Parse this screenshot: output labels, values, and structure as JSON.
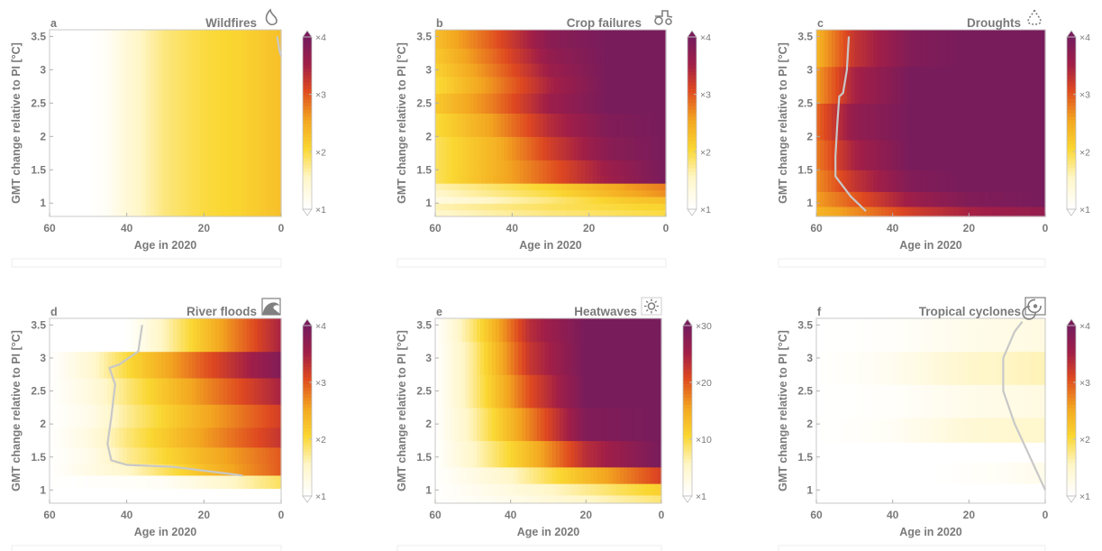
{
  "chart_data": [
    {
      "type": "heatmap",
      "letter": "a",
      "title": "Wildfires",
      "icon": "flame-icon",
      "xlabel": "Age in 2020",
      "ylabel": "GMT change relative to PI [°C]",
      "xlim": [
        60,
        0
      ],
      "ylim": [
        0.8,
        3.6
      ],
      "xticks": [
        "60",
        "40",
        "20",
        "0"
      ],
      "yticks": [
        "1",
        "1.5",
        "2",
        "2.5",
        "3",
        "3.5"
      ],
      "colorbar": {
        "ticks": [
          "×1",
          "×2",
          "×3",
          "×4"
        ]
      },
      "scale_max": 4,
      "ages": [
        60,
        50,
        45,
        40,
        35,
        30,
        20,
        10,
        0
      ],
      "values": [
        1.0,
        1.0,
        1.1,
        1.4,
        1.6,
        1.8,
        2.0,
        2.1,
        2.3
      ],
      "contour": [
        [
          1,
          3.5
        ],
        [
          0.5,
          3.3
        ],
        [
          0,
          3.2
        ]
      ]
    },
    {
      "type": "heatmap",
      "letter": "b",
      "title": "Crop failures",
      "icon": "tractor-icon",
      "xlabel": "Age in 2020",
      "ylabel": "GMT change relative to PI [°C]",
      "xlim": [
        60,
        0
      ],
      "ylim": [
        0.8,
        3.6
      ],
      "xticks": [
        "60",
        "40",
        "20",
        "0"
      ],
      "yticks": [
        "1",
        "1.5",
        "2",
        "2.5",
        "3",
        "3.5"
      ],
      "colorbar": {
        "ticks": [
          "×1",
          "×2",
          "×3",
          "×4"
        ]
      },
      "scale_max": 4,
      "rows": [
        {
          "gmt": 0.85,
          "ages": [
            60,
            30,
            0
          ],
          "values": [
            1.5,
            1.8,
            2.0
          ]
        },
        {
          "gmt": 0.95,
          "ages": [
            60,
            30,
            0
          ],
          "values": [
            1.6,
            1.9,
            2.1
          ]
        },
        {
          "gmt": 1.05,
          "ages": [
            60,
            30,
            10,
            0
          ],
          "values": [
            1.3,
            1.8,
            2.2,
            2.3
          ]
        },
        {
          "gmt": 1.15,
          "ages": [
            60,
            30,
            10,
            0
          ],
          "values": [
            1.5,
            2.0,
            2.5,
            2.7
          ]
        },
        {
          "gmt": 1.25,
          "ages": [
            60,
            30,
            10,
            0
          ],
          "values": [
            1.6,
            2.1,
            2.6,
            2.8
          ]
        },
        {
          "gmt": 1.35,
          "ages": [
            60,
            40,
            20,
            0
          ],
          "values": [
            1.9,
            2.6,
            3.4,
            4.0
          ]
        },
        {
          "gmt": 1.5,
          "ages": [
            60,
            45,
            30,
            15,
            0
          ],
          "values": [
            1.9,
            2.4,
            3.0,
            3.6,
            4.0
          ]
        },
        {
          "gmt": 1.8,
          "ages": [
            60,
            45,
            30,
            15,
            0
          ],
          "values": [
            1.9,
            2.4,
            3.2,
            3.8,
            4.0
          ]
        },
        {
          "gmt": 2.2,
          "ages": [
            60,
            45,
            30,
            15,
            0
          ],
          "values": [
            2.0,
            2.6,
            3.4,
            3.9,
            4.0
          ]
        },
        {
          "gmt": 2.5,
          "ages": [
            60,
            45,
            30,
            15,
            0
          ],
          "values": [
            2.2,
            2.8,
            3.6,
            4.0,
            4.0
          ]
        },
        {
          "gmt": 2.8,
          "ages": [
            60,
            45,
            30,
            15,
            0
          ],
          "values": [
            2.0,
            2.7,
            3.5,
            4.0,
            4.0
          ]
        },
        {
          "gmt": 3.0,
          "ages": [
            60,
            45,
            30,
            15,
            0
          ],
          "values": [
            2.1,
            2.8,
            3.6,
            4.0,
            4.0
          ]
        },
        {
          "gmt": 3.2,
          "ages": [
            60,
            45,
            30,
            15,
            0
          ],
          "values": [
            2.2,
            2.9,
            3.7,
            4.0,
            4.0
          ]
        },
        {
          "gmt": 3.45,
          "ages": [
            60,
            45,
            30,
            15,
            0
          ],
          "values": [
            2.3,
            3.0,
            3.8,
            4.0,
            4.0
          ]
        }
      ]
    },
    {
      "type": "heatmap",
      "letter": "c",
      "title": "Droughts",
      "icon": "droplet-icon",
      "xlabel": "Age in 2020",
      "ylabel": "GMT change relative to PI [°C]",
      "xlim": [
        60,
        0
      ],
      "ylim": [
        0.8,
        3.6
      ],
      "xticks": [
        "60",
        "40",
        "20",
        "0"
      ],
      "yticks": [
        "1",
        "1.5",
        "2",
        "2.5",
        "3",
        "3.5"
      ],
      "colorbar": {
        "ticks": [
          "×1",
          "×2",
          "×3",
          "×4"
        ]
      },
      "scale_max": 4,
      "rows": [
        {
          "gmt": 0.85,
          "ages": [
            60,
            50,
            35,
            20,
            0
          ],
          "values": [
            2.4,
            2.7,
            3.2,
            3.5,
            3.7
          ]
        },
        {
          "gmt": 1.05,
          "ages": [
            60,
            50,
            35,
            20,
            0
          ],
          "values": [
            2.6,
            3.0,
            3.6,
            3.9,
            4.0
          ]
        },
        {
          "gmt": 1.3,
          "ages": [
            60,
            50,
            35,
            20,
            0
          ],
          "values": [
            2.7,
            3.3,
            3.9,
            4.0,
            4.0
          ]
        },
        {
          "gmt": 1.7,
          "ages": [
            60,
            50,
            35,
            20,
            0
          ],
          "values": [
            2.8,
            3.5,
            4.0,
            4.0,
            4.0
          ]
        },
        {
          "gmt": 2.2,
          "ages": [
            60,
            50,
            35,
            20,
            0
          ],
          "values": [
            2.9,
            3.7,
            4.0,
            4.0,
            4.0
          ]
        },
        {
          "gmt": 2.8,
          "ages": [
            60,
            50,
            35,
            20,
            0
          ],
          "values": [
            2.6,
            3.5,
            4.0,
            4.0,
            4.0
          ]
        },
        {
          "gmt": 3.3,
          "ages": [
            60,
            50,
            35,
            20,
            0
          ],
          "values": [
            2.4,
            3.3,
            3.9,
            4.0,
            4.0
          ]
        }
      ],
      "contour": [
        [
          47,
          0.88
        ],
        [
          51,
          1.1
        ],
        [
          55,
          1.4
        ],
        [
          55,
          1.7
        ],
        [
          54.5,
          2.2
        ],
        [
          54,
          2.6
        ],
        [
          53,
          2.65
        ],
        [
          52,
          3.0
        ],
        [
          51.5,
          3.5
        ]
      ]
    },
    {
      "type": "heatmap",
      "letter": "d",
      "title": "River floods",
      "icon": "wave-icon",
      "xlabel": "Age in 2020",
      "ylabel": "GMT change relative to PI [°C]",
      "xlim": [
        60,
        0
      ],
      "ylim": [
        0.8,
        3.6
      ],
      "xticks": [
        "60",
        "40",
        "20",
        "0"
      ],
      "yticks": [
        "1",
        "1.5",
        "2",
        "2.5",
        "3",
        "3.5"
      ],
      "colorbar": {
        "ticks": [
          "×1",
          "×2",
          "×3",
          "×4"
        ]
      },
      "scale_max": 4,
      "rows": [
        {
          "gmt": 0.9,
          "ages": [
            60,
            0
          ],
          "values": [
            1.0,
            1.0
          ]
        },
        {
          "gmt": 1.15,
          "ages": [
            60,
            30,
            10,
            0
          ],
          "values": [
            1.0,
            1.1,
            1.6,
            1.9
          ]
        },
        {
          "gmt": 1.3,
          "ages": [
            60,
            40,
            20,
            0
          ],
          "values": [
            1.0,
            1.5,
            2.3,
            3.0
          ]
        },
        {
          "gmt": 1.5,
          "ages": [
            60,
            50,
            40,
            20,
            0
          ],
          "values": [
            1.0,
            1.2,
            1.7,
            2.4,
            3.0
          ]
        },
        {
          "gmt": 1.8,
          "ages": [
            60,
            50,
            40,
            20,
            0
          ],
          "values": [
            1.0,
            1.3,
            1.8,
            2.6,
            3.3
          ]
        },
        {
          "gmt": 2.1,
          "ages": [
            60,
            50,
            40,
            20,
            0
          ],
          "values": [
            1.0,
            1.2,
            1.7,
            2.5,
            3.2
          ]
        },
        {
          "gmt": 2.5,
          "ages": [
            60,
            50,
            40,
            20,
            0
          ],
          "values": [
            1.0,
            1.3,
            1.8,
            2.7,
            3.5
          ]
        },
        {
          "gmt": 2.9,
          "ages": [
            60,
            50,
            40,
            20,
            0
          ],
          "values": [
            1.0,
            1.4,
            2.0,
            3.0,
            3.9
          ]
        },
        {
          "gmt": 3.3,
          "ages": [
            60,
            40,
            30,
            15,
            0
          ],
          "values": [
            1.0,
            1.0,
            1.6,
            2.6,
            3.5
          ]
        }
      ],
      "contour": [
        [
          10,
          1.22
        ],
        [
          28,
          1.35
        ],
        [
          40,
          1.38
        ],
        [
          44,
          1.45
        ],
        [
          45,
          1.7
        ],
        [
          44,
          2.1
        ],
        [
          43,
          2.6
        ],
        [
          44.5,
          2.85
        ],
        [
          42,
          2.9
        ],
        [
          37,
          3.1
        ],
        [
          36,
          3.5
        ]
      ]
    },
    {
      "type": "heatmap",
      "letter": "e",
      "title": "Heatwaves",
      "icon": "sun-icon",
      "xlabel": "Age in 2020",
      "ylabel": "GMT change relative to PI [°C]",
      "xlim": [
        60,
        0
      ],
      "ylim": [
        0.8,
        3.6
      ],
      "xticks": [
        "60",
        "40",
        "20",
        "0"
      ],
      "yticks": [
        "1",
        "1.5",
        "2",
        "2.5",
        "3",
        "3.5"
      ],
      "colorbar": {
        "ticks": [
          "×1",
          "×10",
          "×20",
          "×30"
        ]
      },
      "scale_max": 30,
      "rows": [
        {
          "gmt": 0.85,
          "ages": [
            60,
            40,
            20,
            0
          ],
          "values": [
            1,
            3,
            6,
            9
          ]
        },
        {
          "gmt": 1.0,
          "ages": [
            60,
            40,
            20,
            0
          ],
          "values": [
            1,
            4,
            8,
            12
          ]
        },
        {
          "gmt": 1.2,
          "ages": [
            60,
            40,
            20,
            0
          ],
          "values": [
            1,
            6,
            14,
            22
          ]
        },
        {
          "gmt": 1.5,
          "ages": [
            60,
            50,
            35,
            20,
            0
          ],
          "values": [
            1,
            6,
            14,
            24,
            30
          ]
        },
        {
          "gmt": 2.0,
          "ages": [
            60,
            50,
            35,
            20,
            0
          ],
          "values": [
            1,
            7,
            18,
            29,
            30
          ]
        },
        {
          "gmt": 2.5,
          "ages": [
            60,
            50,
            35,
            20,
            0
          ],
          "values": [
            1,
            8,
            21,
            30,
            30
          ]
        },
        {
          "gmt": 3.0,
          "ages": [
            60,
            50,
            35,
            20,
            0
          ],
          "values": [
            1,
            8,
            23,
            30,
            30
          ]
        },
        {
          "gmt": 3.5,
          "ages": [
            60,
            50,
            35,
            20,
            0
          ],
          "values": [
            1,
            9,
            24,
            30,
            30
          ]
        }
      ]
    },
    {
      "type": "heatmap",
      "letter": "f",
      "title": "Tropical cyclones",
      "icon": "cyclone-icon",
      "xlabel": "Age in 2020",
      "ylabel": "GMT change relative to PI [°C]",
      "xlim": [
        60,
        0
      ],
      "ylim": [
        0.8,
        3.6
      ],
      "xticks": [
        "60",
        "40",
        "20",
        "0"
      ],
      "yticks": [
        "1",
        "1.5",
        "2",
        "2.5",
        "3",
        "3.5"
      ],
      "colorbar": {
        "ticks": [
          "×1",
          "×2",
          "×3",
          "×4"
        ]
      },
      "scale_max": 4,
      "rows": [
        {
          "gmt": 0.9,
          "ages": [
            60,
            0
          ],
          "values": [
            1.0,
            1.0
          ]
        },
        {
          "gmt": 1.3,
          "ages": [
            60,
            30,
            10,
            0
          ],
          "values": [
            1.0,
            1.0,
            1.1,
            1.2
          ]
        },
        {
          "gmt": 1.55,
          "ages": [
            60,
            0
          ],
          "values": [
            1.0,
            1.0
          ]
        },
        {
          "gmt": 1.9,
          "ages": [
            60,
            40,
            20,
            0
          ],
          "values": [
            1.0,
            1.1,
            1.4,
            1.5
          ]
        },
        {
          "gmt": 2.3,
          "ages": [
            60,
            40,
            20,
            0
          ],
          "values": [
            1.0,
            1.05,
            1.2,
            1.3
          ]
        },
        {
          "gmt": 2.9,
          "ages": [
            60,
            40,
            20,
            0
          ],
          "values": [
            1.0,
            1.15,
            1.5,
            1.6
          ]
        },
        {
          "gmt": 3.3,
          "ages": [
            60,
            40,
            20,
            0
          ],
          "values": [
            1.0,
            1.05,
            1.2,
            1.3
          ]
        }
      ],
      "contour": [
        [
          0,
          1.0
        ],
        [
          4,
          1.5
        ],
        [
          8,
          2.0
        ],
        [
          11,
          2.5
        ],
        [
          11,
          3.0
        ],
        [
          8,
          3.4
        ],
        [
          6,
          3.55
        ]
      ]
    }
  ]
}
